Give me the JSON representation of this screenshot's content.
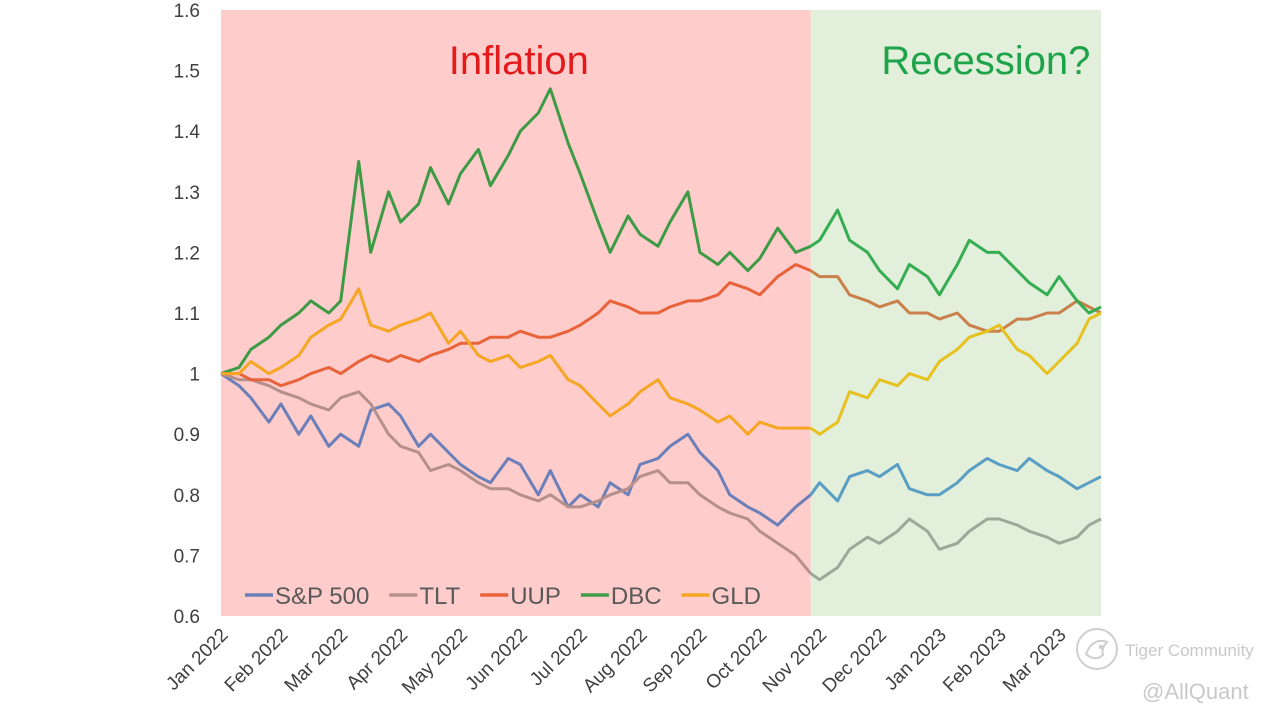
{
  "chart_data": {
    "type": "line",
    "title": "",
    "xlabel": "",
    "ylabel": "",
    "ylim": [
      0.6,
      1.6
    ],
    "yticks": [
      0.6,
      0.7,
      0.8,
      0.9,
      1,
      1.1,
      1.2,
      1.3,
      1.4,
      1.5,
      1.6
    ],
    "ytick_labels": [
      "0.6",
      "0.7",
      "0.8",
      "0.9",
      "1",
      "1.1",
      "1.2",
      "1.3",
      "1.4",
      "1.5",
      "1.6"
    ],
    "x_range_months": [
      0,
      14.7
    ],
    "x_ticks": [
      {
        "label": "Jan 2022",
        "month": 0
      },
      {
        "label": "Feb 2022",
        "month": 1
      },
      {
        "label": "Mar 2022",
        "month": 2
      },
      {
        "label": "Apr 2022",
        "month": 3
      },
      {
        "label": "May 2022",
        "month": 4
      },
      {
        "label": "Jun 2022",
        "month": 5
      },
      {
        "label": "Jul 2022",
        "month": 6
      },
      {
        "label": "Aug 2022",
        "month": 7
      },
      {
        "label": "Sep 2022",
        "month": 8
      },
      {
        "label": "Oct 2022",
        "month": 9
      },
      {
        "label": "Nov 2022",
        "month": 10
      },
      {
        "label": "Dec 2022",
        "month": 11
      },
      {
        "label": "Jan 2023",
        "month": 12
      },
      {
        "label": "Feb 2023",
        "month": 13
      },
      {
        "label": "Mar 2023",
        "month": 14
      }
    ],
    "regions": [
      {
        "label": "Inflation",
        "from_month": 0,
        "to_month": 9.85,
        "fill": "#ffcccc",
        "text_color": "#e31a1c"
      },
      {
        "label": "Recession?",
        "from_month": 9.85,
        "to_month": 14.7,
        "fill": "#e2efda",
        "text_color": "#1fa34a"
      }
    ],
    "legend_position": "bottom-left",
    "series": [
      {
        "name": "S&P 500",
        "color": "#6b7fb8",
        "color_after": "#5a9ec4",
        "x": [
          0,
          0.3,
          0.5,
          0.8,
          1.0,
          1.3,
          1.5,
          1.8,
          2.0,
          2.3,
          2.5,
          2.8,
          3.0,
          3.3,
          3.5,
          3.8,
          4.0,
          4.3,
          4.5,
          4.8,
          5.0,
          5.3,
          5.5,
          5.8,
          6.0,
          6.3,
          6.5,
          6.8,
          7.0,
          7.3,
          7.5,
          7.8,
          8.0,
          8.3,
          8.5,
          8.8,
          9.0,
          9.3,
          9.6,
          9.85,
          10.0,
          10.3,
          10.5,
          10.8,
          11.0,
          11.3,
          11.5,
          11.8,
          12.0,
          12.3,
          12.5,
          12.8,
          13.0,
          13.3,
          13.5,
          13.8,
          14.0,
          14.3,
          14.5,
          14.7
        ],
        "values": [
          1,
          0.98,
          0.96,
          0.92,
          0.95,
          0.9,
          0.93,
          0.88,
          0.9,
          0.88,
          0.94,
          0.95,
          0.93,
          0.88,
          0.9,
          0.87,
          0.85,
          0.83,
          0.82,
          0.86,
          0.85,
          0.8,
          0.84,
          0.78,
          0.8,
          0.78,
          0.82,
          0.8,
          0.85,
          0.86,
          0.88,
          0.9,
          0.87,
          0.84,
          0.8,
          0.78,
          0.77,
          0.75,
          0.78,
          0.8,
          0.82,
          0.79,
          0.83,
          0.84,
          0.83,
          0.85,
          0.81,
          0.8,
          0.8,
          0.82,
          0.84,
          0.86,
          0.85,
          0.84,
          0.86,
          0.84,
          0.83,
          0.81,
          0.82,
          0.83
        ]
      },
      {
        "name": "TLT",
        "color": "#b5908a",
        "color_after": "#9ca99a",
        "x": [
          0,
          0.3,
          0.5,
          0.8,
          1.0,
          1.3,
          1.5,
          1.8,
          2.0,
          2.3,
          2.5,
          2.8,
          3.0,
          3.3,
          3.5,
          3.8,
          4.0,
          4.3,
          4.5,
          4.8,
          5.0,
          5.3,
          5.5,
          5.8,
          6.0,
          6.3,
          6.5,
          6.8,
          7.0,
          7.3,
          7.5,
          7.8,
          8.0,
          8.3,
          8.5,
          8.8,
          9.0,
          9.3,
          9.6,
          9.85,
          10.0,
          10.3,
          10.5,
          10.8,
          11.0,
          11.3,
          11.5,
          11.8,
          12.0,
          12.3,
          12.5,
          12.8,
          13.0,
          13.3,
          13.5,
          13.8,
          14.0,
          14.3,
          14.5,
          14.7
        ],
        "values": [
          1,
          0.99,
          0.99,
          0.98,
          0.97,
          0.96,
          0.95,
          0.94,
          0.96,
          0.97,
          0.95,
          0.9,
          0.88,
          0.87,
          0.84,
          0.85,
          0.84,
          0.82,
          0.81,
          0.81,
          0.8,
          0.79,
          0.8,
          0.78,
          0.78,
          0.79,
          0.8,
          0.81,
          0.83,
          0.84,
          0.82,
          0.82,
          0.8,
          0.78,
          0.77,
          0.76,
          0.74,
          0.72,
          0.7,
          0.67,
          0.66,
          0.68,
          0.71,
          0.73,
          0.72,
          0.74,
          0.76,
          0.74,
          0.71,
          0.72,
          0.74,
          0.76,
          0.76,
          0.75,
          0.74,
          0.73,
          0.72,
          0.73,
          0.75,
          0.76
        ]
      },
      {
        "name": "UUP",
        "color": "#e8623a",
        "color_after": "#c9804a",
        "x": [
          0,
          0.3,
          0.5,
          0.8,
          1.0,
          1.3,
          1.5,
          1.8,
          2.0,
          2.3,
          2.5,
          2.8,
          3.0,
          3.3,
          3.5,
          3.8,
          4.0,
          4.3,
          4.5,
          4.8,
          5.0,
          5.3,
          5.5,
          5.8,
          6.0,
          6.3,
          6.5,
          6.8,
          7.0,
          7.3,
          7.5,
          7.8,
          8.0,
          8.3,
          8.5,
          8.8,
          9.0,
          9.3,
          9.6,
          9.85,
          10.0,
          10.3,
          10.5,
          10.8,
          11.0,
          11.3,
          11.5,
          11.8,
          12.0,
          12.3,
          12.5,
          12.8,
          13.0,
          13.3,
          13.5,
          13.8,
          14.0,
          14.3,
          14.5,
          14.7
        ],
        "values": [
          1,
          1.0,
          0.99,
          0.99,
          0.98,
          0.99,
          1.0,
          1.01,
          1.0,
          1.02,
          1.03,
          1.02,
          1.03,
          1.02,
          1.03,
          1.04,
          1.05,
          1.05,
          1.06,
          1.06,
          1.07,
          1.06,
          1.06,
          1.07,
          1.08,
          1.1,
          1.12,
          1.11,
          1.1,
          1.1,
          1.11,
          1.12,
          1.12,
          1.13,
          1.15,
          1.14,
          1.13,
          1.16,
          1.18,
          1.17,
          1.16,
          1.16,
          1.13,
          1.12,
          1.11,
          1.12,
          1.1,
          1.1,
          1.09,
          1.1,
          1.08,
          1.07,
          1.07,
          1.09,
          1.09,
          1.1,
          1.1,
          1.12,
          1.11,
          1.1
        ]
      },
      {
        "name": "DBC",
        "color": "#3d9a45",
        "color_after": "#35ad52",
        "x": [
          0,
          0.3,
          0.5,
          0.8,
          1.0,
          1.3,
          1.5,
          1.8,
          2.0,
          2.3,
          2.5,
          2.8,
          3.0,
          3.3,
          3.5,
          3.8,
          4.0,
          4.3,
          4.5,
          4.8,
          5.0,
          5.3,
          5.5,
          5.8,
          6.0,
          6.3,
          6.5,
          6.8,
          7.0,
          7.3,
          7.5,
          7.8,
          8.0,
          8.3,
          8.5,
          8.8,
          9.0,
          9.3,
          9.6,
          9.85,
          10.0,
          10.3,
          10.5,
          10.8,
          11.0,
          11.3,
          11.5,
          11.8,
          12.0,
          12.3,
          12.5,
          12.8,
          13.0,
          13.3,
          13.5,
          13.8,
          14.0,
          14.3,
          14.5,
          14.7
        ],
        "values": [
          1,
          1.01,
          1.04,
          1.06,
          1.08,
          1.1,
          1.12,
          1.1,
          1.12,
          1.35,
          1.2,
          1.3,
          1.25,
          1.28,
          1.34,
          1.28,
          1.33,
          1.37,
          1.31,
          1.36,
          1.4,
          1.43,
          1.47,
          1.38,
          1.33,
          1.25,
          1.2,
          1.26,
          1.23,
          1.21,
          1.25,
          1.3,
          1.2,
          1.18,
          1.2,
          1.17,
          1.19,
          1.24,
          1.2,
          1.21,
          1.22,
          1.27,
          1.22,
          1.2,
          1.17,
          1.14,
          1.18,
          1.16,
          1.13,
          1.18,
          1.22,
          1.2,
          1.2,
          1.17,
          1.15,
          1.13,
          1.16,
          1.12,
          1.1,
          1.11
        ]
      },
      {
        "name": "GLD",
        "color": "#f5a623",
        "color_after": "#e6c11f",
        "x": [
          0,
          0.3,
          0.5,
          0.8,
          1.0,
          1.3,
          1.5,
          1.8,
          2.0,
          2.3,
          2.5,
          2.8,
          3.0,
          3.3,
          3.5,
          3.8,
          4.0,
          4.3,
          4.5,
          4.8,
          5.0,
          5.3,
          5.5,
          5.8,
          6.0,
          6.3,
          6.5,
          6.8,
          7.0,
          7.3,
          7.5,
          7.8,
          8.0,
          8.3,
          8.5,
          8.8,
          9.0,
          9.3,
          9.6,
          9.85,
          10.0,
          10.3,
          10.5,
          10.8,
          11.0,
          11.3,
          11.5,
          11.8,
          12.0,
          12.3,
          12.5,
          12.8,
          13.0,
          13.3,
          13.5,
          13.8,
          14.0,
          14.3,
          14.5,
          14.7
        ],
        "values": [
          1,
          1.0,
          1.02,
          1.0,
          1.01,
          1.03,
          1.06,
          1.08,
          1.09,
          1.14,
          1.08,
          1.07,
          1.08,
          1.09,
          1.1,
          1.05,
          1.07,
          1.03,
          1.02,
          1.03,
          1.01,
          1.02,
          1.03,
          0.99,
          0.98,
          0.95,
          0.93,
          0.95,
          0.97,
          0.99,
          0.96,
          0.95,
          0.94,
          0.92,
          0.93,
          0.9,
          0.92,
          0.91,
          0.91,
          0.91,
          0.9,
          0.92,
          0.97,
          0.96,
          0.99,
          0.98,
          1.0,
          0.99,
          1.02,
          1.04,
          1.06,
          1.07,
          1.08,
          1.04,
          1.03,
          1.0,
          1.02,
          1.05,
          1.09,
          1.1
        ]
      }
    ]
  },
  "watermark": {
    "brand": "Tiger Community",
    "handle": "@AllQuant",
    "icon": "tiger-community-logo-icon"
  }
}
